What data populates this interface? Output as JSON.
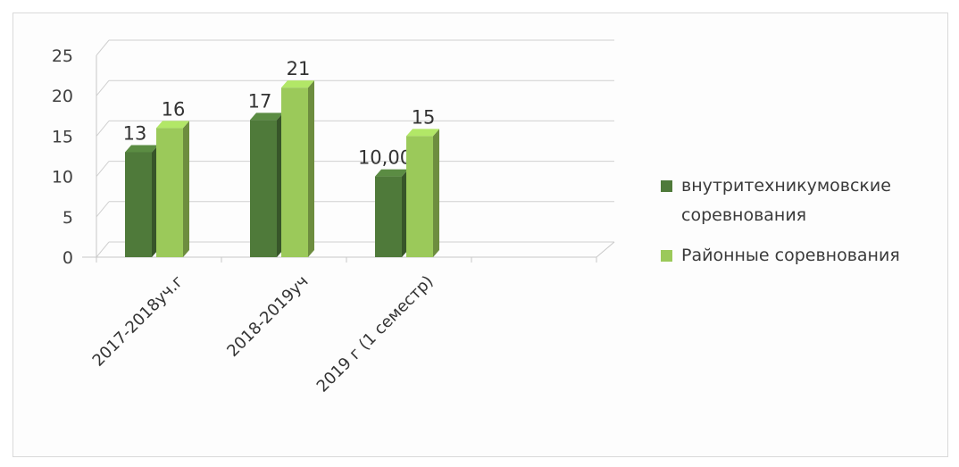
{
  "chart_data": {
    "type": "bar",
    "title": "",
    "xlabel": "",
    "ylabel": "",
    "ylim": [
      0,
      25
    ],
    "yticks": [
      "0",
      "5",
      "10",
      "15",
      "20",
      "25"
    ],
    "categories": [
      "2017-2018уч.г",
      "2018-2019уч",
      "2019 г (1 семестр)"
    ],
    "series": [
      {
        "name": "внутритехникумовские соревнования",
        "values": [
          13,
          17,
          10
        ],
        "labels": [
          "13",
          "17",
          "10,00"
        ],
        "color": "#4f7a3a"
      },
      {
        "name": "Районные соревнования",
        "values": [
          16,
          21,
          15
        ],
        "labels": [
          "16",
          "21",
          "15"
        ],
        "color": "#9bc95a"
      }
    ],
    "legend_position": "right",
    "grid": true
  }
}
